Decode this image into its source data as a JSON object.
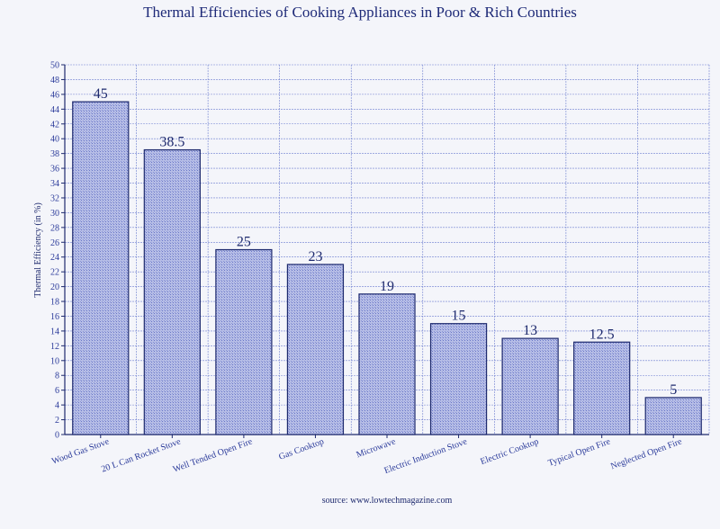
{
  "chart_data": {
    "type": "bar",
    "title": "Thermal Efficiencies of Cooking Appliances in Poor & Rich Countries",
    "xlabel": "",
    "ylabel": "Thermal Efficiency (in %)",
    "categories": [
      "Wood Gas Stove",
      "20 L Can Rocket Stove",
      "Well Tended Open Fire",
      "Gas Cooktop",
      "Microwave",
      "Electric Induction Stove",
      "Electric Cooktop",
      "Typical Open Fire",
      "Neglected Open Fire"
    ],
    "values": [
      45,
      38.5,
      25,
      23,
      19,
      15,
      13,
      12.5,
      5
    ],
    "value_labels": [
      "45",
      "38.5",
      "25",
      "23",
      "19",
      "15",
      "13",
      "12.5",
      "5"
    ],
    "ylim": [
      0,
      50
    ],
    "ytick_step": 2,
    "grid": true,
    "legend": "none",
    "source": "source: www.lowtechmagazine.com",
    "colors": {
      "bar_fill": "#a9b1de",
      "bar_stroke": "#1e2a6e",
      "grid": "#6e7fd0",
      "axis": "#1e2a6e",
      "plot_bg": "#f4f5fa"
    }
  }
}
